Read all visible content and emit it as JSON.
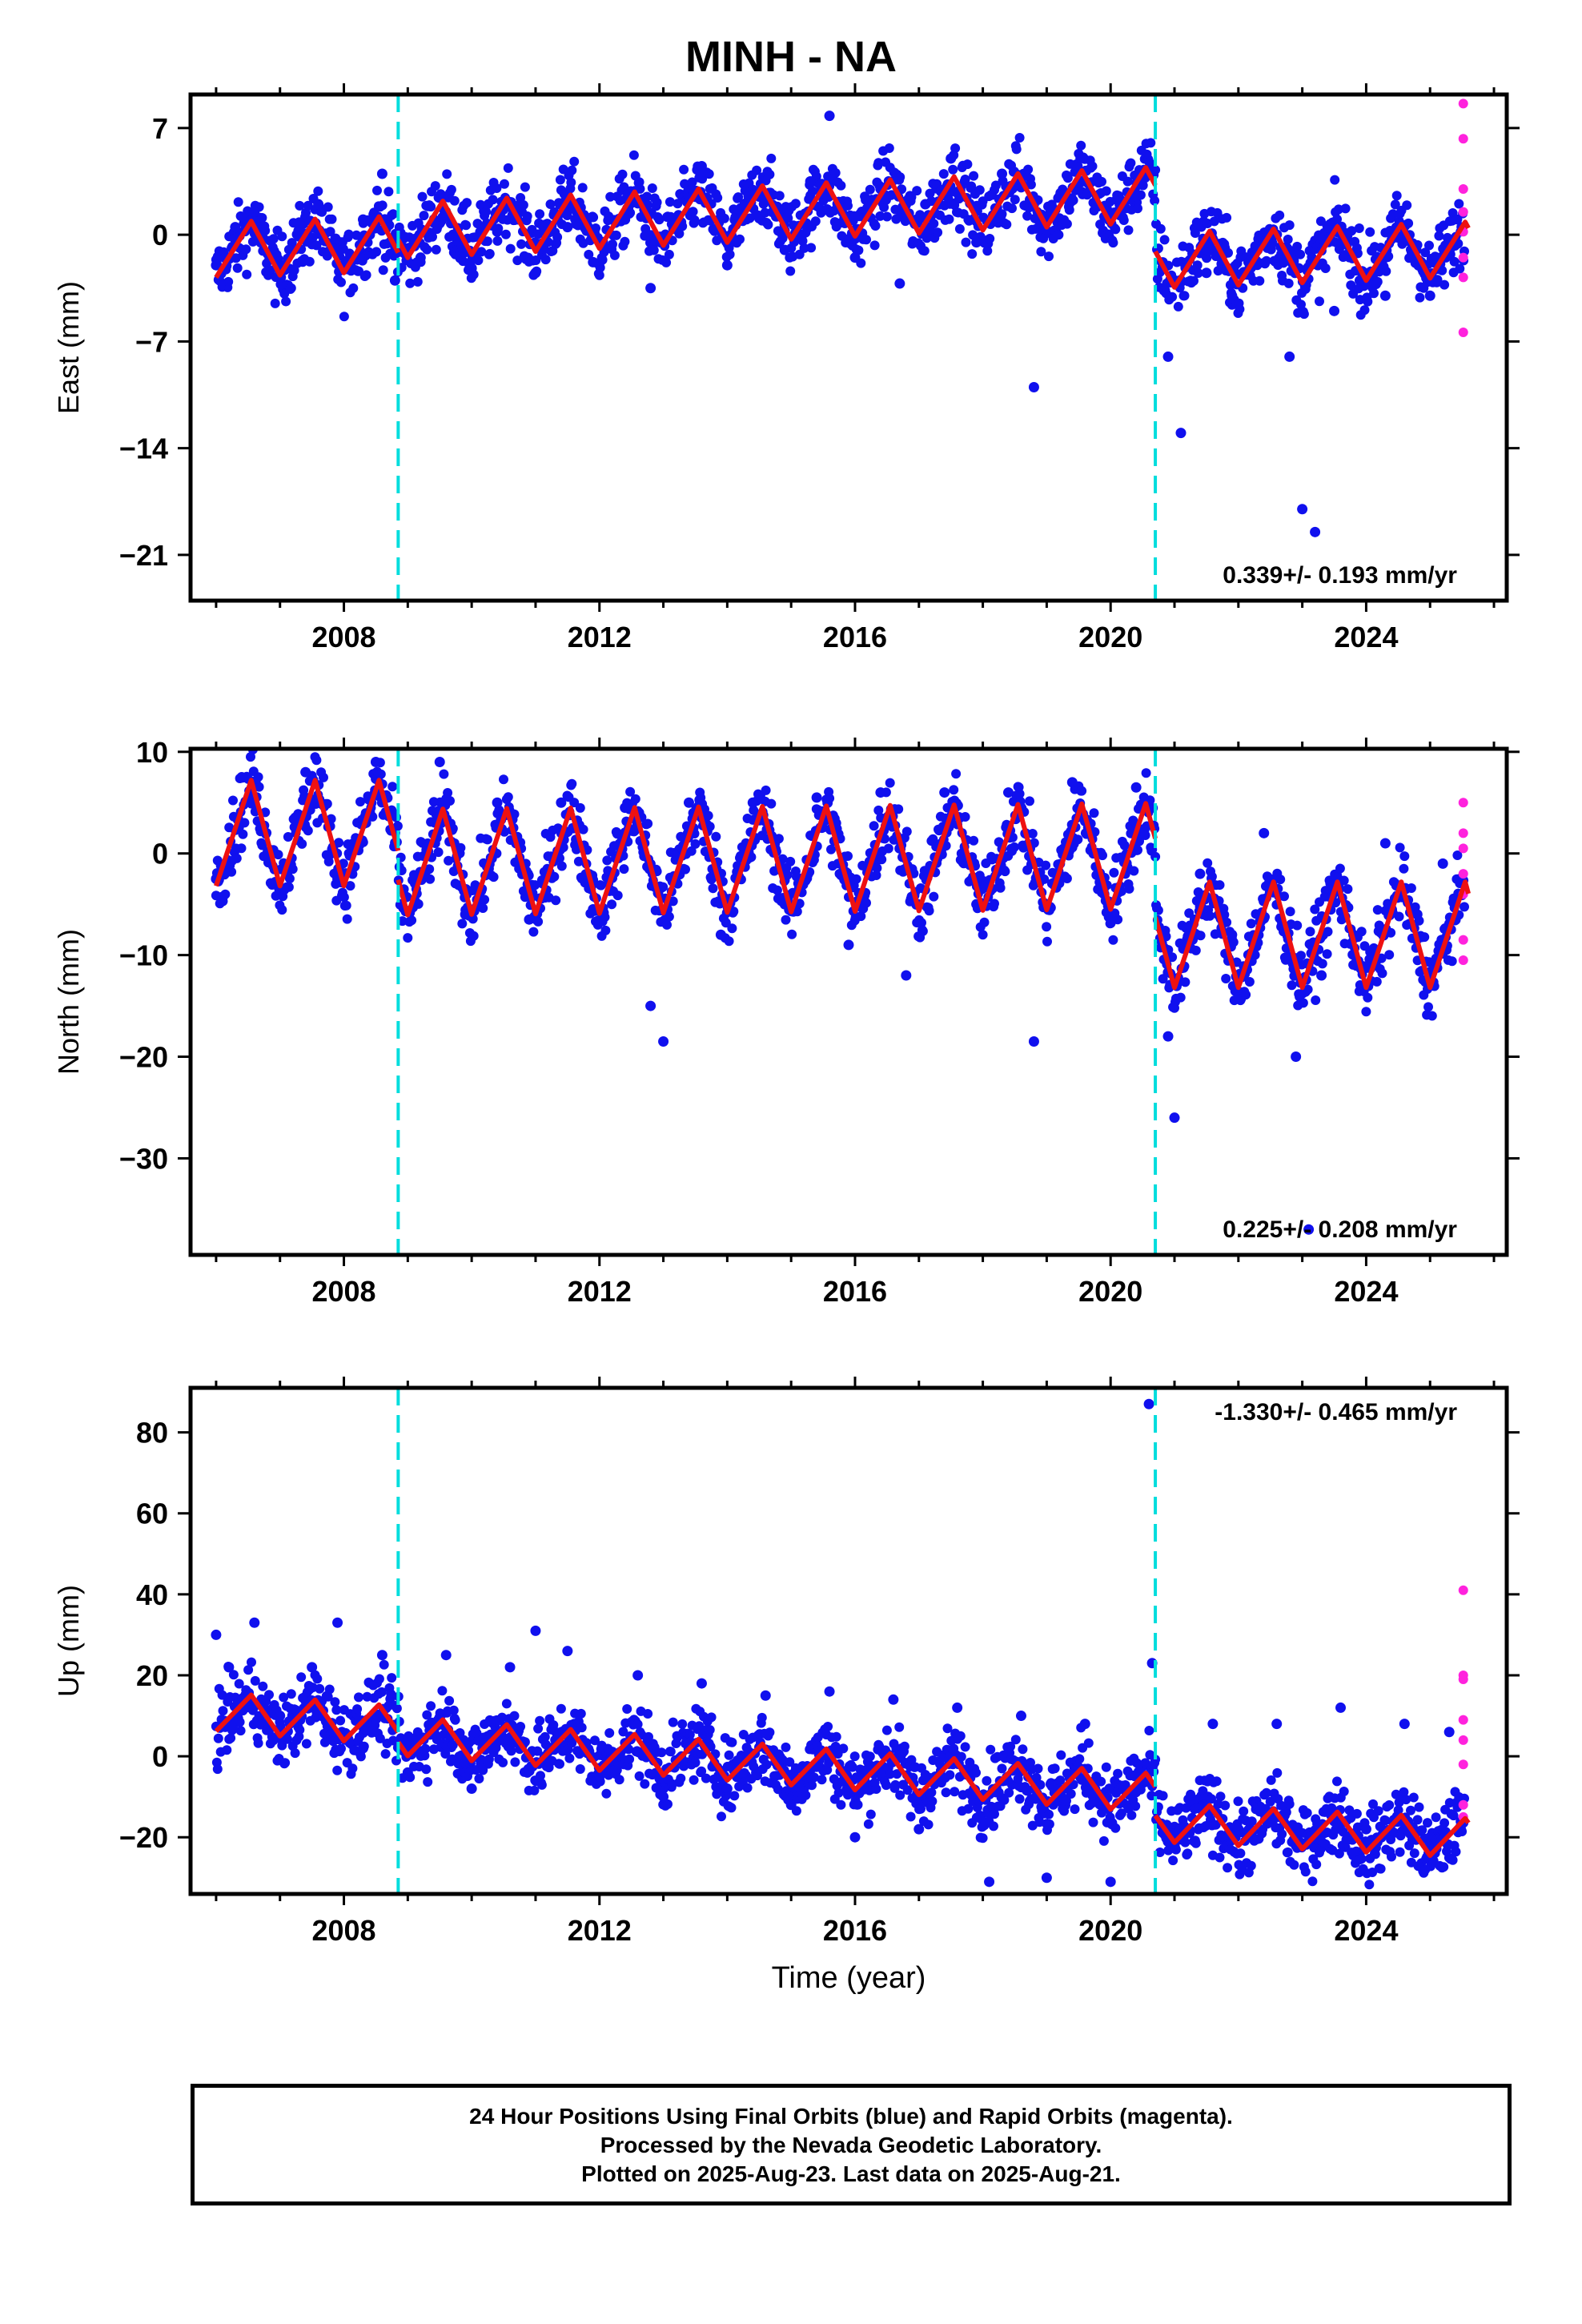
{
  "title": "MINH - NA",
  "x_axis_label": "Time (year)",
  "footer": {
    "line1": "24 Hour Positions Using Final Orbits (blue) and Rapid Orbits (magenta).",
    "line2": "Processed by the Nevada Geodetic Laboratory.",
    "line3": "Plotted on 2025-Aug-23. Last data on 2025-Aug-21."
  },
  "colors": {
    "final_orbits": "#1010ee",
    "rapid_orbits": "#ff22dd",
    "model": "#ee1111",
    "offsets": "#00dddd"
  },
  "chart_data": [
    {
      "type": "scatter",
      "component": "East",
      "ylabel": "East (mm)",
      "ylim": [
        -24,
        9.2
      ],
      "yticks": [
        7,
        0,
        -7,
        -14,
        -21
      ],
      "xlim": [
        2005.6,
        2026.2
      ],
      "xticks": [
        2008,
        2012,
        2016,
        2020,
        2024
      ],
      "rate_label": "0.339+/- 0.193 mm/yr",
      "offset_lines": [
        2008.85,
        2020.7
      ],
      "model": {
        "start_year": 2006.0,
        "end_year": 2025.6,
        "trend_before": [
          -1.0,
          0.15
        ],
        "trend_mid": [
          -0.3,
          0.2
        ],
        "trend_after": [
          -3.9,
          0.15
        ],
        "annual_amplitude": 1.8
      },
      "series": [
        {
          "name": "Final Orbits",
          "points": [
            [
              2006.0,
              -2.0
            ],
            [
              2006.3,
              0.5
            ],
            [
              2006.6,
              1.5
            ],
            [
              2006.9,
              -1.2
            ],
            [
              2007.3,
              0.8
            ],
            [
              2007.6,
              2.0
            ],
            [
              2007.9,
              -1.0
            ],
            [
              2008.3,
              1.0
            ],
            [
              2008.6,
              4.0
            ],
            [
              2008.8,
              -3.0
            ],
            [
              2009.2,
              -1.5
            ],
            [
              2009.6,
              1.2
            ],
            [
              2010.0,
              -2.2
            ],
            [
              2010.4,
              0.2
            ],
            [
              2010.7,
              1.6
            ],
            [
              2011.0,
              -2.5
            ],
            [
              2011.5,
              0.5
            ],
            [
              2011.9,
              -1.8
            ],
            [
              2012.4,
              1.0
            ],
            [
              2012.8,
              -3.5
            ],
            [
              2013.2,
              0.8
            ],
            [
              2013.6,
              4.5
            ],
            [
              2014.0,
              -2.0
            ],
            [
              2014.5,
              2.5
            ],
            [
              2014.9,
              -1.0
            ],
            [
              2015.3,
              3.5
            ],
            [
              2015.6,
              7.8
            ],
            [
              2016.0,
              -1.5
            ],
            [
              2016.4,
              3.0
            ],
            [
              2016.7,
              -3.2
            ],
            [
              2017.1,
              2.0
            ],
            [
              2017.5,
              5.0
            ],
            [
              2017.9,
              -0.5
            ],
            [
              2018.3,
              4.0
            ],
            [
              2018.8,
              -10.0
            ],
            [
              2019.2,
              2.5
            ],
            [
              2019.6,
              3.5
            ],
            [
              2020.0,
              1.0
            ],
            [
              2020.4,
              2.5
            ],
            [
              2020.9,
              -8.0
            ],
            [
              2021.1,
              -13.0
            ],
            [
              2021.5,
              -2.5
            ],
            [
              2021.9,
              -4.0
            ],
            [
              2022.3,
              -1.0
            ],
            [
              2022.8,
              -8.0
            ],
            [
              2023.0,
              -18.0
            ],
            [
              2023.2,
              -19.5
            ],
            [
              2023.5,
              -5.0
            ],
            [
              2023.9,
              -3.0
            ],
            [
              2024.3,
              -4.0
            ],
            [
              2024.7,
              -1.5
            ],
            [
              2025.0,
              -4.0
            ],
            [
              2025.3,
              -1.0
            ]
          ]
        },
        {
          "name": "Rapid Orbits",
          "points": [
            [
              2025.52,
              8.6
            ],
            [
              2025.52,
              6.3
            ],
            [
              2025.52,
              3.0
            ],
            [
              2025.52,
              1.5
            ],
            [
              2025.52,
              0.2
            ],
            [
              2025.52,
              -1.5
            ],
            [
              2025.52,
              -2.8
            ],
            [
              2025.52,
              -6.4
            ]
          ]
        }
      ]
    },
    {
      "type": "scatter",
      "component": "North",
      "ylabel": "North (mm)",
      "ylim": [
        -39.5,
        10.3
      ],
      "yticks": [
        10,
        0,
        -10,
        -20,
        -30
      ],
      "xlim": [
        2005.6,
        2026.2
      ],
      "xticks": [
        2008,
        2012,
        2016,
        2020,
        2024
      ],
      "rate_label": "0.225+/- 0.208 mm/yr",
      "offset_lines": [
        2008.85,
        2020.7
      ],
      "model": {
        "start_year": 2006.0,
        "end_year": 2025.6,
        "trend_before": [
          2.0,
          0.0
        ],
        "trend_mid": [
          -1.0,
          0.05
        ],
        "trend_after": [
          -8.0,
          0.0
        ],
        "annual_amplitude": 5.2
      },
      "series": [
        {
          "name": "Final Orbits",
          "points": [
            [
              2006.0,
              -2.5
            ],
            [
              2006.4,
              7.5
            ],
            [
              2006.9,
              -3.0
            ],
            [
              2007.4,
              8.0
            ],
            [
              2007.9,
              -2.5
            ],
            [
              2008.5,
              9.0
            ],
            [
              2008.9,
              -5.0
            ],
            [
              2009.5,
              9.0
            ],
            [
              2009.9,
              -6.0
            ],
            [
              2010.4,
              5.0
            ],
            [
              2010.9,
              -6.5
            ],
            [
              2011.4,
              5.0
            ],
            [
              2011.9,
              -5.5
            ],
            [
              2012.4,
              4.5
            ],
            [
              2012.8,
              -15.0
            ],
            [
              2013.0,
              -18.5
            ],
            [
              2013.4,
              5.0
            ],
            [
              2013.9,
              -8.0
            ],
            [
              2014.4,
              5.0
            ],
            [
              2014.9,
              -5.0
            ],
            [
              2015.4,
              5.5
            ],
            [
              2015.9,
              -9.0
            ],
            [
              2016.4,
              6.0
            ],
            [
              2016.8,
              -12.0
            ],
            [
              2017.4,
              6.0
            ],
            [
              2017.9,
              -5.0
            ],
            [
              2018.4,
              6.0
            ],
            [
              2018.8,
              -18.5
            ],
            [
              2019.4,
              7.0
            ],
            [
              2019.9,
              -4.0
            ],
            [
              2020.4,
              6.5
            ],
            [
              2020.9,
              -18.0
            ],
            [
              2021.0,
              -26.0
            ],
            [
              2021.4,
              -2.0
            ],
            [
              2021.9,
              -8.0
            ],
            [
              2022.4,
              2.0
            ],
            [
              2022.9,
              -20.0
            ],
            [
              2023.1,
              -37.0
            ],
            [
              2023.3,
              -12.0
            ],
            [
              2023.8,
              -8.0
            ],
            [
              2024.3,
              1.0
            ],
            [
              2024.8,
              -6.0
            ],
            [
              2025.2,
              -1.0
            ]
          ]
        },
        {
          "name": "Rapid Orbits",
          "points": [
            [
              2025.52,
              5.0
            ],
            [
              2025.52,
              2.0
            ],
            [
              2025.52,
              0.5
            ],
            [
              2025.52,
              -2.0
            ],
            [
              2025.52,
              -4.0
            ],
            [
              2025.52,
              -8.5
            ],
            [
              2025.52,
              -10.5
            ]
          ]
        }
      ]
    },
    {
      "type": "scatter",
      "component": "Up",
      "ylabel": "Up (mm)",
      "ylim": [
        -34,
        91
      ],
      "yticks": [
        80,
        60,
        40,
        20,
        0,
        -20
      ],
      "xlim": [
        2005.6,
        2026.2
      ],
      "xticks": [
        2008,
        2012,
        2016,
        2020,
        2024
      ],
      "rate_label": "-1.330+/- 0.465 mm/yr",
      "offset_lines": [
        2008.85,
        2020.7
      ],
      "model": {
        "start_year": 2006.0,
        "end_year": 2025.6,
        "trend_before": [
          11.0,
          -1.2
        ],
        "trend_mid": [
          8.5,
          -1.2
        ],
        "trend_after": [
          -4.5,
          -0.8
        ],
        "annual_amplitude": 4.8
      },
      "series": [
        {
          "name": "Final Orbits",
          "points": [
            [
              2006.0,
              30.0
            ],
            [
              2006.2,
              22.0
            ],
            [
              2006.6,
              33.0
            ],
            [
              2007.0,
              10.0
            ],
            [
              2007.5,
              22.0
            ],
            [
              2007.9,
              33.0
            ],
            [
              2008.3,
              2.0
            ],
            [
              2008.6,
              25.0
            ],
            [
              2009.0,
              -4.0
            ],
            [
              2009.6,
              25.0
            ],
            [
              2010.0,
              -8.0
            ],
            [
              2010.6,
              22.0
            ],
            [
              2011.0,
              31.0
            ],
            [
              2011.5,
              26.0
            ],
            [
              2012.0,
              -5.0
            ],
            [
              2012.6,
              20.0
            ],
            [
              2013.0,
              -10.0
            ],
            [
              2013.6,
              18.0
            ],
            [
              2014.0,
              -8.0
            ],
            [
              2014.6,
              15.0
            ],
            [
              2015.0,
              -12.0
            ],
            [
              2015.6,
              16.0
            ],
            [
              2016.0,
              -20.0
            ],
            [
              2016.6,
              14.0
            ],
            [
              2017.0,
              -18.0
            ],
            [
              2017.6,
              12.0
            ],
            [
              2018.1,
              -31.0
            ],
            [
              2018.6,
              10.0
            ],
            [
              2019.0,
              -30.0
            ],
            [
              2019.6,
              8.0
            ],
            [
              2020.0,
              -31.0
            ],
            [
              2020.6,
              87.0
            ],
            [
              2020.65,
              23.0
            ],
            [
              2021.0,
              -22.0
            ],
            [
              2021.6,
              8.0
            ],
            [
              2022.0,
              -18.0
            ],
            [
              2022.6,
              8.0
            ],
            [
              2023.0,
              -22.0
            ],
            [
              2023.6,
              12.0
            ],
            [
              2024.0,
              -18.0
            ],
            [
              2024.6,
              8.0
            ],
            [
              2025.0,
              -20.0
            ],
            [
              2025.3,
              6.0
            ]
          ]
        },
        {
          "name": "Rapid Orbits",
          "points": [
            [
              2025.52,
              41.0
            ],
            [
              2025.52,
              20.0
            ],
            [
              2025.52,
              19.0
            ],
            [
              2025.52,
              9.0
            ],
            [
              2025.52,
              4.0
            ],
            [
              2025.52,
              -2.0
            ],
            [
              2025.52,
              -12.0
            ],
            [
              2025.52,
              -15.0
            ]
          ]
        }
      ]
    }
  ]
}
